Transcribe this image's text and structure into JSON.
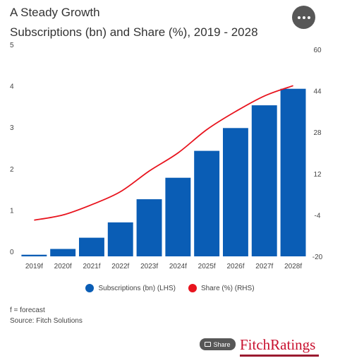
{
  "header": {
    "title": "A Steady Growth",
    "subtitle": "Subscriptions (bn) and Share (%), 2019 - 2028"
  },
  "legend": {
    "items": [
      {
        "label": "Subscriptions (bn) (LHS)",
        "color": "#0a5db5"
      },
      {
        "label": "Share (%) (RHS)",
        "color": "#e8141e"
      }
    ]
  },
  "notes": {
    "forecast": "f = forecast",
    "source": "Source: Fitch Solutions"
  },
  "share_button": {
    "label": "Share",
    "icon": "share-icon"
  },
  "brand": {
    "name": "FitchRatings"
  },
  "more_button": {
    "icon": "more-dots-icon"
  },
  "chart_data": {
    "type": "bar",
    "categories": [
      "2019f",
      "2020f",
      "2021f",
      "2022f",
      "2023f",
      "2024f",
      "2025f",
      "2026f",
      "2027f",
      "2028f"
    ],
    "series": [
      {
        "name": "Subscriptions (bn) (LHS)",
        "type": "bar",
        "axis": "left",
        "color": "#0a5db5",
        "values": [
          0.04,
          0.18,
          0.45,
          0.82,
          1.38,
          1.9,
          2.55,
          3.1,
          3.65,
          4.05
        ]
      },
      {
        "name": "Share (%) (RHS)",
        "type": "line",
        "axis": "right",
        "color": "#e8141e",
        "values": [
          -6,
          -4,
          0,
          5,
          13,
          20,
          29,
          36,
          42,
          46
        ]
      }
    ],
    "y_left": {
      "min": 0,
      "max": 5,
      "ticks": [
        0,
        1,
        2,
        3,
        4,
        5
      ]
    },
    "y_right": {
      "min": -20,
      "max": 60,
      "ticks": [
        -20,
        -4,
        12,
        28,
        44,
        60
      ]
    },
    "grid": false,
    "legend_position": "bottom"
  }
}
